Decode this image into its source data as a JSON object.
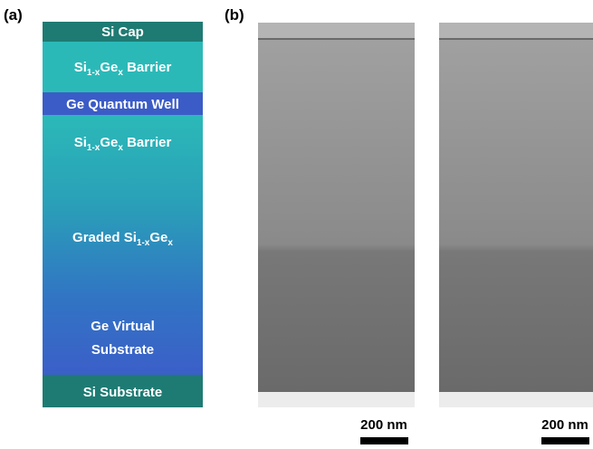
{
  "panel_a": {
    "label": "(a)",
    "layers": [
      {
        "label": [
          "Si Cap"
        ]
      },
      {
        "label": [
          "Si",
          "1-x",
          "Ge",
          "x",
          " Barrier"
        ]
      },
      {
        "label": [
          "Ge Quantum Well"
        ]
      },
      {
        "label": [
          "Si",
          "1-x",
          "Ge",
          "x",
          " Barrier"
        ]
      },
      {
        "label": [
          "Graded Si",
          "1-x",
          "Ge",
          "x"
        ]
      },
      {
        "label": [
          "Ge Virtual"
        ]
      },
      {
        "label": [
          "Substrate"
        ]
      },
      {
        "label": [
          "Si Substrate"
        ]
      }
    ]
  },
  "panel_b": {
    "label": "(b)",
    "scale_bars": [
      "200 nm",
      "200 nm"
    ]
  }
}
